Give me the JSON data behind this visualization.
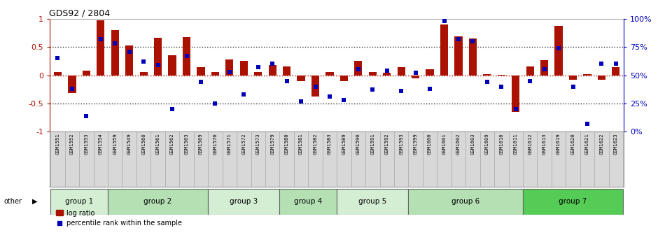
{
  "title": "GDS92 / 2804",
  "samples": [
    "GSM1551",
    "GSM1552",
    "GSM1553",
    "GSM1554",
    "GSM1559",
    "GSM1549",
    "GSM1560",
    "GSM1561",
    "GSM1562",
    "GSM1563",
    "GSM1569",
    "GSM1570",
    "GSM1571",
    "GSM1572",
    "GSM1573",
    "GSM1579",
    "GSM1580",
    "GSM1581",
    "GSM1582",
    "GSM1583",
    "GSM1589",
    "GSM1590",
    "GSM1591",
    "GSM1592",
    "GSM1593",
    "GSM1599",
    "GSM1600",
    "GSM1601",
    "GSM1602",
    "GSM1603",
    "GSM1609",
    "GSM1610",
    "GSM1611",
    "GSM1612",
    "GSM1613",
    "GSM1619",
    "GSM1620",
    "GSM1621",
    "GSM1622",
    "GSM1623"
  ],
  "log_ratio": [
    0.05,
    -0.32,
    0.08,
    0.97,
    0.8,
    0.53,
    0.05,
    0.66,
    0.35,
    0.68,
    0.14,
    0.06,
    0.28,
    0.26,
    0.05,
    0.18,
    0.16,
    -0.1,
    -0.38,
    0.05,
    -0.1,
    0.26,
    0.05,
    0.04,
    0.14,
    -0.06,
    0.1,
    0.9,
    0.69,
    0.65,
    0.02,
    0.01,
    -0.65,
    0.16,
    0.27,
    0.88,
    -0.08,
    0.02,
    -0.08,
    0.14
  ],
  "percentile": [
    65,
    38,
    14,
    82,
    78,
    71,
    62,
    59,
    20,
    67,
    44,
    25,
    53,
    33,
    57,
    60,
    45,
    27,
    40,
    31,
    28,
    55,
    37,
    54,
    36,
    52,
    38,
    98,
    82,
    80,
    44,
    40,
    20,
    45,
    55,
    74,
    40,
    7,
    60,
    60
  ],
  "groups": [
    {
      "name": "group 1",
      "start": 0,
      "end": 3,
      "color": "#d4eed4"
    },
    {
      "name": "group 2",
      "start": 4,
      "end": 10,
      "color": "#b4e0b4"
    },
    {
      "name": "group 3",
      "start": 11,
      "end": 15,
      "color": "#d4eed4"
    },
    {
      "name": "group 4",
      "start": 16,
      "end": 19,
      "color": "#b4e0b4"
    },
    {
      "name": "group 5",
      "start": 20,
      "end": 24,
      "color": "#d4eed4"
    },
    {
      "name": "group 6",
      "start": 25,
      "end": 32,
      "color": "#b4e0b4"
    },
    {
      "name": "group 7",
      "start": 33,
      "end": 39,
      "color": "#55cc55"
    }
  ],
  "bar_color": "#aa1100",
  "dot_color": "#0000bb",
  "bg_color": "#ffffff",
  "ylim": [
    -1.0,
    1.0
  ],
  "y2lim": [
    0,
    100
  ],
  "dotted_line_color": "#333333",
  "zero_line_color": "#aa1100",
  "label_bg": "#d8d8d8",
  "left_yticks": [
    -1,
    -0.5,
    0,
    0.5,
    1
  ],
  "right_yticks": [
    0,
    25,
    50,
    75,
    100
  ],
  "right_yticklabels": [
    "0%",
    "25%",
    "50%",
    "75%",
    "100%"
  ]
}
